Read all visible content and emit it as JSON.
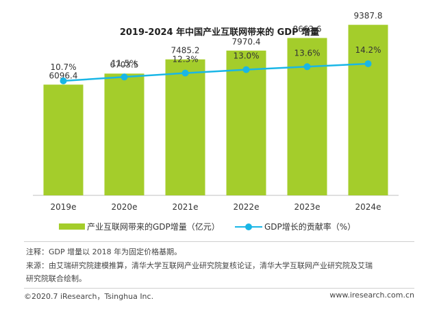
{
  "title": "2019-2024 年中国产业互联网带来的 GDP 增量",
  "chart_data": {
    "type": "bar",
    "categories": [
      "2019e",
      "2020e",
      "2021e",
      "2022e",
      "2023e",
      "2024e"
    ],
    "series": [
      {
        "name": "产业互联网带来的GDP增量（亿元）",
        "type": "bar",
        "values": [
          6096.4,
          6703.5,
          7485.2,
          7970.4,
          8663.6,
          9387.8
        ],
        "labels": [
          "6096.4",
          "6703.5",
          "7485.2",
          "7970.4",
          "8663.6",
          "9387.8"
        ],
        "color": "#a4cd2b"
      },
      {
        "name": "GDP增长的贡献率（%）",
        "type": "line",
        "values": [
          10.7,
          11.5,
          12.3,
          13.0,
          13.6,
          14.2
        ],
        "labels": [
          "10.7%",
          "11.5%",
          "12.3%",
          "13.0%",
          "13.6%",
          "14.2%"
        ],
        "color": "#19b6e6"
      }
    ],
    "ylim": [
      0,
      10000
    ],
    "ylim_line": [
      0,
      15
    ],
    "grid": false,
    "legend_position": "bottom"
  },
  "legend": {
    "bar_label": "产业互联网带来的GDP增量（亿元）",
    "line_label": "GDP增长的贡献率（%）"
  },
  "notes": {
    "line1": "注释：GDP 增量以 2018 年为固定价格基期。",
    "line2": "来源：由艾瑞研究院建模推算，清华大学互联网产业研究院复核论证，清华大学互联网产业研究院及艾瑞",
    "line3": "研究院联合绘制。"
  },
  "footer": {
    "left": "©2020.7 iResearch，Tsinghua Inc.",
    "right": "www.iresearch.com.cn"
  },
  "colors": {
    "bar": "#a4cd2b",
    "line": "#19b6e6",
    "axis": "#bfbfbf"
  }
}
